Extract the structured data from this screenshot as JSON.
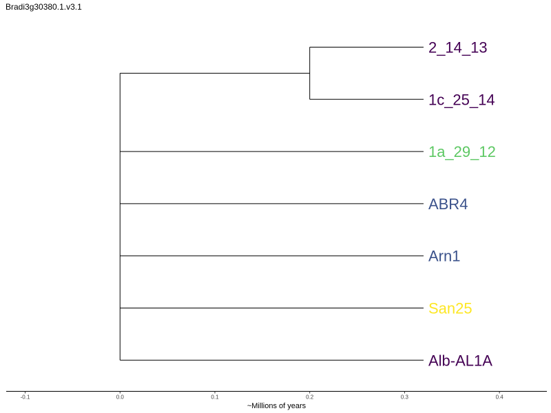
{
  "title": "Bradi3g30380.1.v3.1",
  "chart_data": {
    "type": "dendrogram",
    "xlabel": "~Millions of years",
    "xlim": [
      -0.12,
      0.45
    ],
    "xticks": [
      "-0.1",
      "0.0",
      "0.1",
      "0.2",
      "0.3",
      "0.4"
    ],
    "xtick_values": [
      -0.1,
      0.0,
      0.1,
      0.2,
      0.3,
      0.4
    ],
    "leaves": [
      {
        "label": "2_14_13",
        "color": "#440154",
        "parent": "clade1"
      },
      {
        "label": "1c_25_14",
        "color": "#440154",
        "parent": "clade1"
      },
      {
        "label": "1a_29_12",
        "color": "#5DC863",
        "parent": "root"
      },
      {
        "label": "ABR4",
        "color": "#3B528B",
        "parent": "root"
      },
      {
        "label": "Arn1",
        "color": "#3B528B",
        "parent": "root"
      },
      {
        "label": "San25",
        "color": "#FDE725",
        "parent": "root"
      },
      {
        "label": "Alb-AL1A",
        "color": "#440154",
        "parent": "root"
      }
    ],
    "nodes": [
      {
        "id": "root",
        "x": 0.0
      },
      {
        "id": "clade1",
        "x": 0.2,
        "parent": "root"
      }
    ],
    "leaf_x": 0.32
  }
}
